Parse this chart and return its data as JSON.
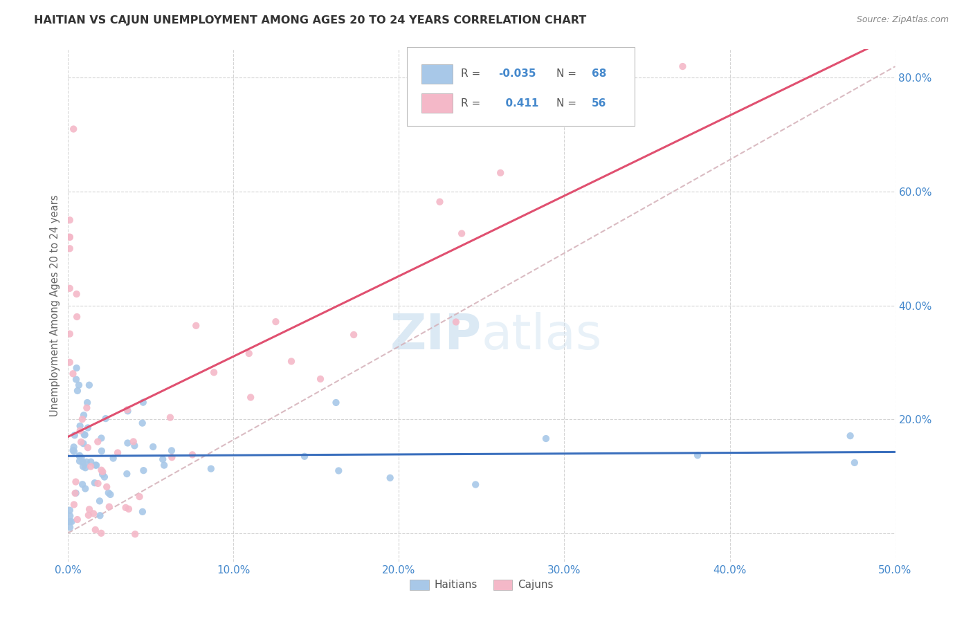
{
  "title": "HAITIAN VS CAJUN UNEMPLOYMENT AMONG AGES 20 TO 24 YEARS CORRELATION CHART",
  "source": "Source: ZipAtlas.com",
  "ylabel": "Unemployment Among Ages 20 to 24 years",
  "xmin": 0.0,
  "xmax": 0.5,
  "ymin": -0.05,
  "ymax": 0.85,
  "haitian_color": "#a8c8e8",
  "cajun_color": "#f4b8c8",
  "haitian_line_color": "#3a6fbd",
  "cajun_line_color": "#e05070",
  "dash_color": "#d4b0b8",
  "watermark_color": "#cce0f0",
  "background_color": "#ffffff",
  "grid_color": "#d0d0d0",
  "r_haitian": -0.035,
  "r_cajun": 0.411,
  "n_haitian": 68,
  "n_cajun": 56,
  "tick_label_color": "#4488cc",
  "axis_label_color": "#666666",
  "title_color": "#333333",
  "source_color": "#888888"
}
